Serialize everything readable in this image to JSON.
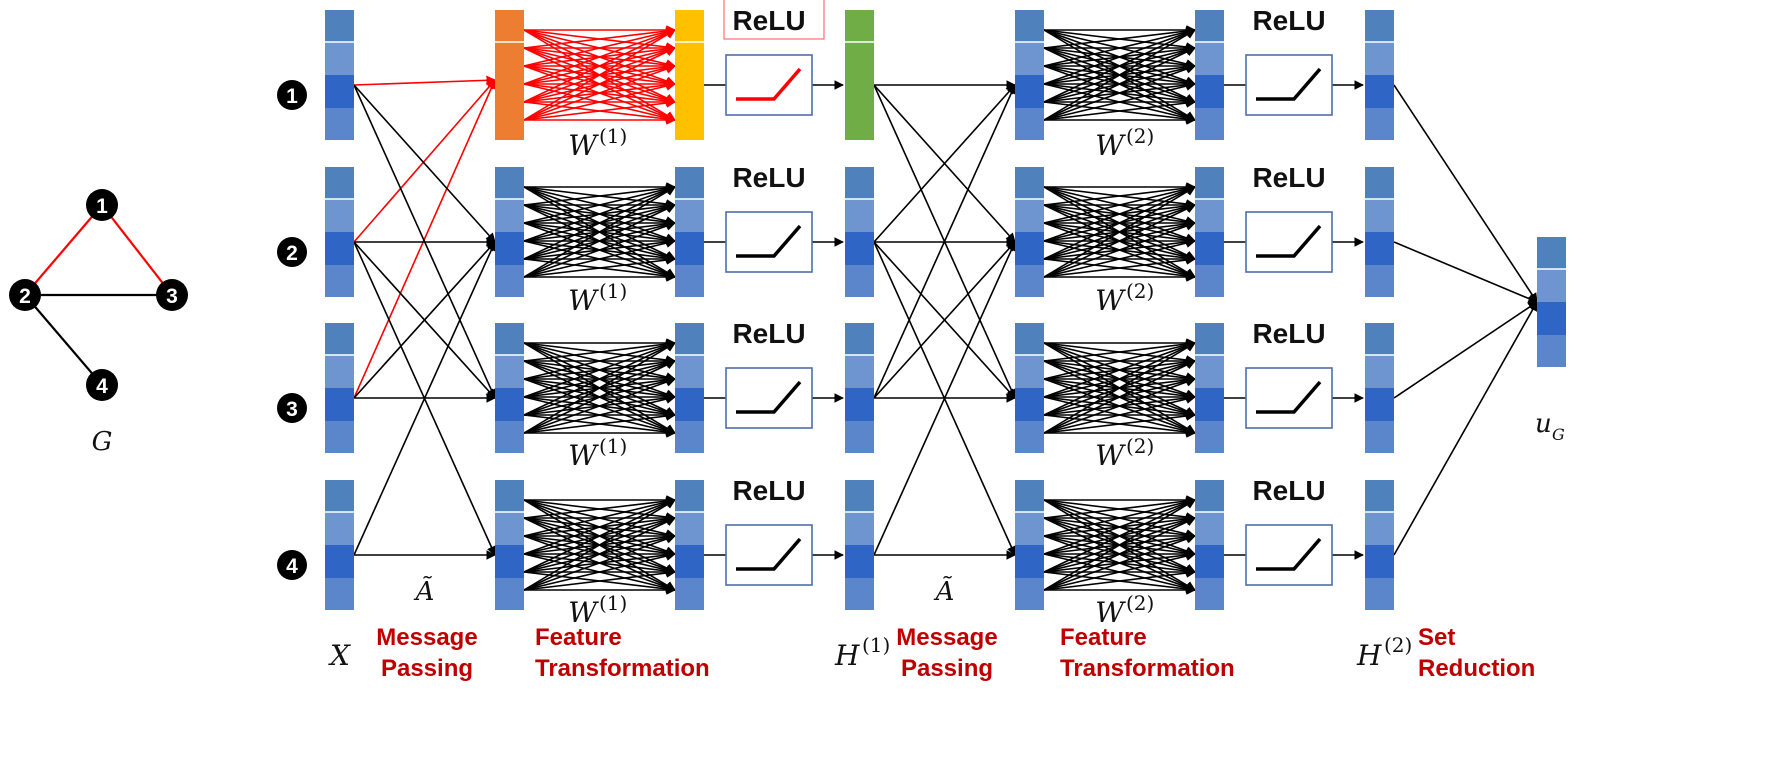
{
  "graph": {
    "nodes": [
      "1",
      "2",
      "3",
      "4"
    ],
    "edges": [
      [
        "1",
        "2"
      ],
      [
        "1",
        "3"
      ],
      [
        "2",
        "3"
      ],
      [
        "2",
        "4"
      ]
    ],
    "highlighted_edges": [
      [
        "1",
        "2"
      ],
      [
        "1",
        "3"
      ]
    ],
    "label": "G"
  },
  "rows": [
    "1",
    "2",
    "3",
    "4"
  ],
  "labels": {
    "X": "X",
    "A_tilde": "Ã",
    "W": "W",
    "W1_sup": "(1)",
    "W2_sup": "(2)",
    "H": "H",
    "H1_sup": "(1)",
    "H2_sup": "(2)",
    "u": "u",
    "u_sub": "G",
    "relu": "ReLU"
  },
  "stages": {
    "message_passing_1": [
      "Message",
      "Passing"
    ],
    "feature_transformation_1": [
      "Feature",
      "Transformation"
    ],
    "message_passing_2": [
      "Message",
      "Passing"
    ],
    "feature_transformation_2": [
      "Feature",
      "Transformation"
    ],
    "set_reduction": [
      "Set",
      "Reduction"
    ]
  },
  "colors": {
    "vector_blue": "#4f81bd",
    "vector_mid": "#2f65c4",
    "highlight_orange": "#ed7d31",
    "highlight_yellow": "#ffc000",
    "highlight_green": "#70ad47",
    "highlight_red": "#ff0000",
    "stage_text": "#c00000",
    "node_black": "#000000"
  }
}
